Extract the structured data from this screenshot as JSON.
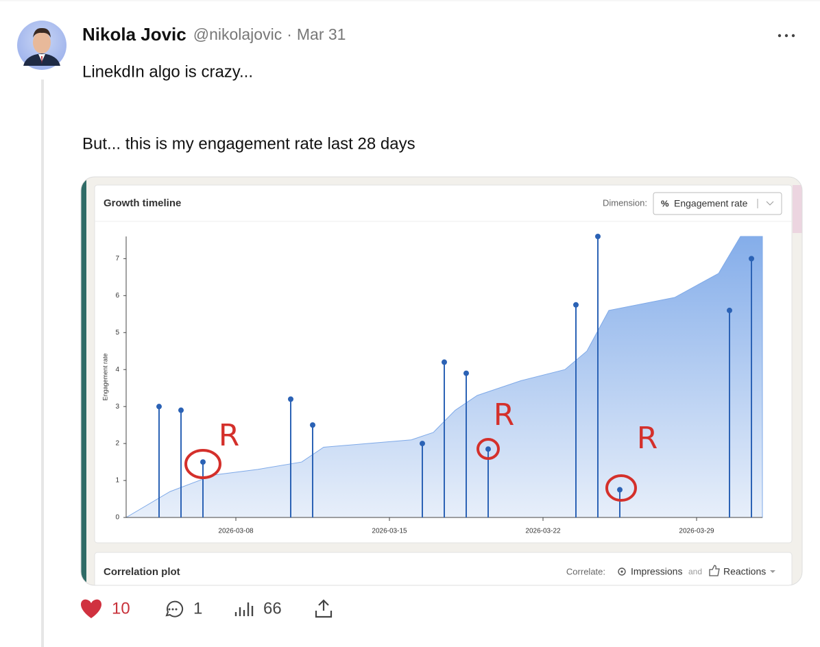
{
  "post": {
    "author": "Nikola Jovic",
    "handle": "@nikolajovic",
    "separator": "·",
    "date": "Mar 31",
    "text": [
      "LinekdIn algo is crazy...",
      "But... this is my engagement rate last 28 days"
    ],
    "stats": {
      "likes": 10,
      "replies": 1,
      "views": 66
    }
  },
  "image": {
    "title": "Growth timeline",
    "dimension_label": "Dimension:",
    "dimension_icon": "%",
    "dimension_value": "Engagement rate",
    "section2_title": "Correlation plot",
    "correlate_label": "Correlate:",
    "correlate_a": "Impressions",
    "correlate_join": "and",
    "correlate_b": "Reactions"
  },
  "chart_data": {
    "type": "lollipop",
    "ylabel": "Engagement rate",
    "color": "#2b62b5",
    "x": [
      "2026-03-04",
      "2026-03-05",
      "2026-03-06",
      "2026-03-10",
      "2026-03-11",
      "2026-03-16",
      "2026-03-17",
      "2026-03-18",
      "2026-03-19",
      "2026-03-23",
      "2026-03-24",
      "2026-03-25",
      "2026-03-30",
      "2026-03-31"
    ],
    "values": [
      3.0,
      2.9,
      1.5,
      3.2,
      2.5,
      2.0,
      4.2,
      3.9,
      1.85,
      5.75,
      7.6,
      0.75,
      5.6,
      7.0
    ],
    "area": {
      "color": "#7ea9e8",
      "x": [
        "2026-03-03",
        "2026-03-05",
        "2026-03-07",
        "2026-03-09",
        "2026-03-11",
        "2026-03-12",
        "2026-03-14",
        "2026-03-16",
        "2026-03-17",
        "2026-03-18",
        "2026-03-19",
        "2026-03-21",
        "2026-03-23",
        "2026-03-24",
        "2026-03-25",
        "2026-03-28",
        "2026-03-30",
        "2026-03-31",
        "2026-04-01"
      ],
      "values": [
        0,
        0.7,
        1.15,
        1.3,
        1.5,
        1.9,
        2.0,
        2.1,
        2.3,
        2.9,
        3.3,
        3.7,
        4.0,
        4.5,
        5.6,
        5.95,
        6.6,
        7.6,
        7.6
      ]
    },
    "xlim": [
      "2026-03-03",
      "2026-04-01"
    ],
    "xticks": [
      "2026-03-08",
      "2026-03-15",
      "2026-03-22",
      "2026-03-29"
    ],
    "ylim": [
      0,
      7.6
    ],
    "yticks": [
      0,
      1,
      2,
      3,
      4,
      5,
      6,
      7
    ],
    "annotations": [
      "R",
      "R",
      "R"
    ],
    "annotation_color": "#d4302b"
  }
}
